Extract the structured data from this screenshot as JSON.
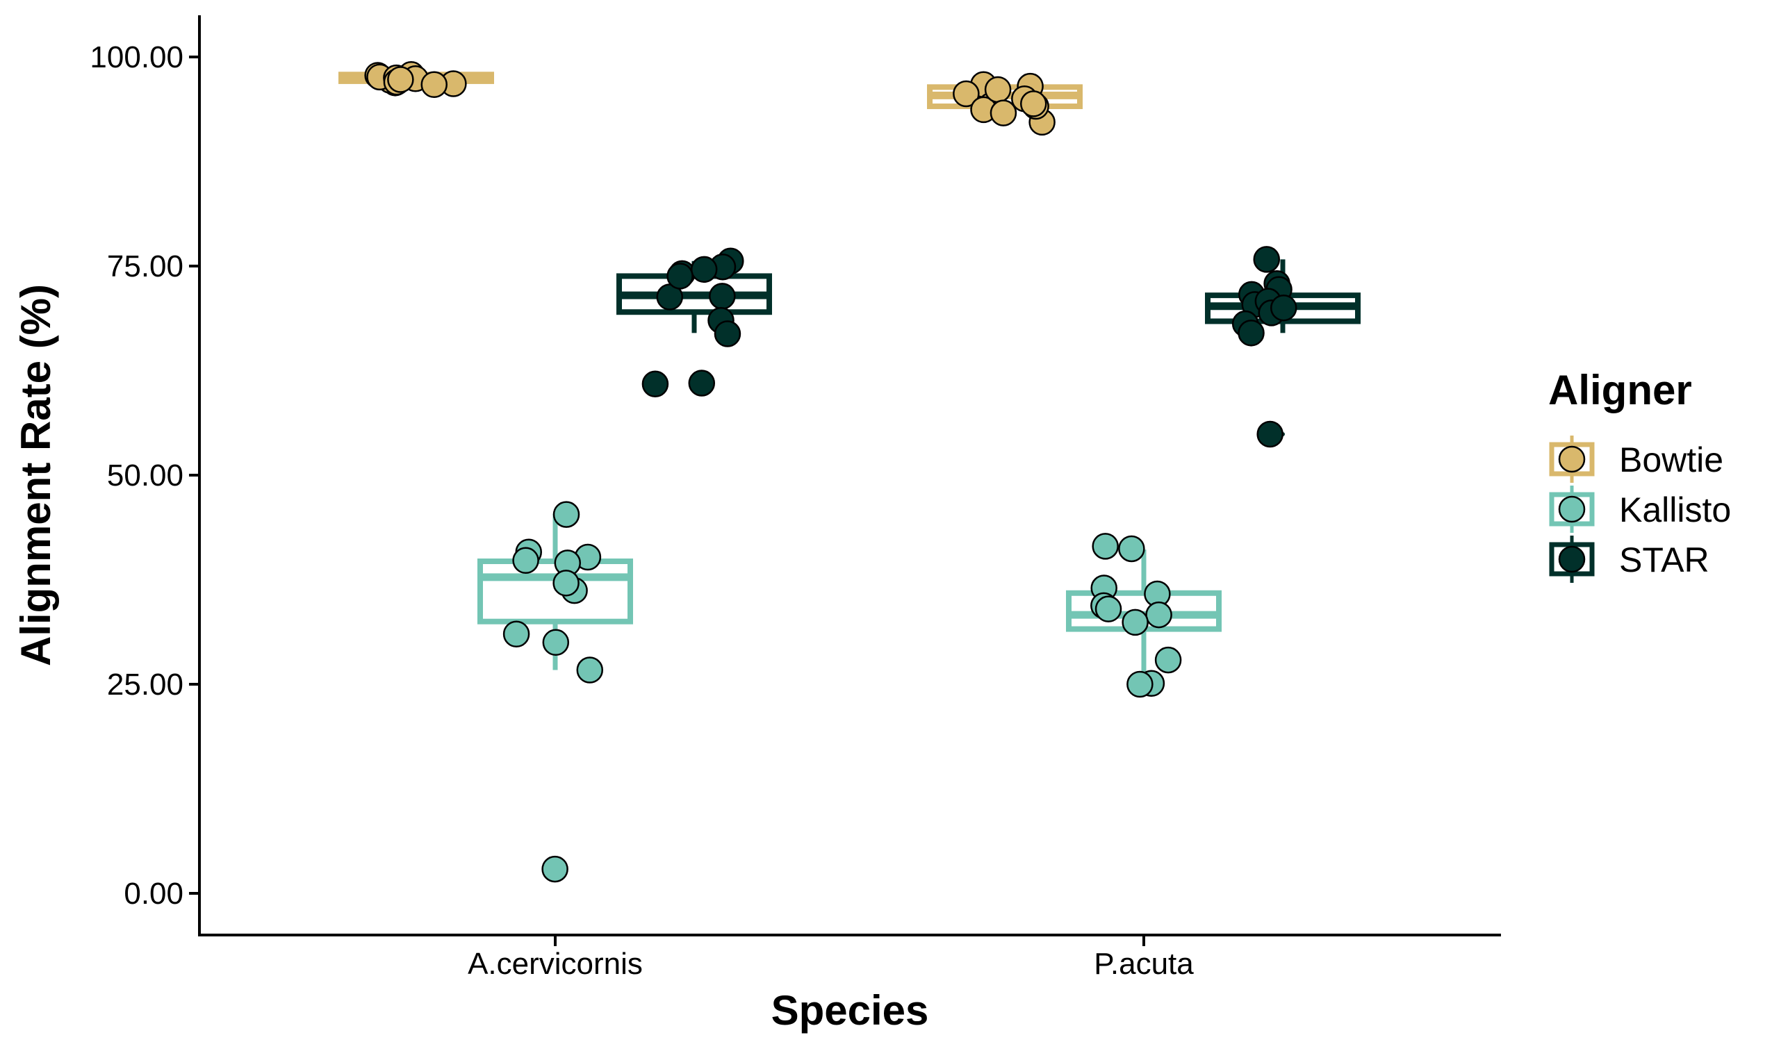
{
  "chart_data": {
    "type": "boxplot",
    "title": "",
    "xlabel": "Species",
    "ylabel": "Alignment Rate (%)",
    "ylim": [
      -5,
      105
    ],
    "yticks": [
      "0.00",
      "25.00",
      "50.00",
      "75.00",
      "100.00"
    ],
    "categories": [
      "A.cervicornis",
      "P.acuta"
    ],
    "legend": {
      "title": "Aligner",
      "position": "right"
    },
    "grid": false,
    "series": [
      {
        "name": "Bowtie",
        "color": "#D9B86C",
        "groups": [
          {
            "q1": 97.1,
            "median": 97.5,
            "q3": 97.9,
            "whisker_low": 96.6,
            "whisker_high": 98.0,
            "outliers": [],
            "points": [
              97.9,
              97.4,
              96.9,
              97.8,
              97.2,
              97.6,
              96.8,
              97.5,
              97.0,
              97.3,
              96.7
            ]
          },
          {
            "q1": 94.1,
            "median": 95.4,
            "q3": 96.4,
            "whisker_low": 92.2,
            "whisker_high": 96.9,
            "outliers": [],
            "points": [
              96.7,
              94.2,
              95.6,
              92.2,
              96.5,
              93.7,
              94.1,
              96.1,
              93.3,
              95.0,
              94.4
            ]
          }
        ]
      },
      {
        "name": "Kallisto",
        "color": "#73C5B4",
        "groups": [
          {
            "q1": 32.5,
            "median": 37.8,
            "q3": 39.7,
            "whisker_low": 26.7,
            "whisker_high": 45.4,
            "outliers": [
              2.8
            ],
            "points": [
              45.3,
              40.2,
              39.5,
              40.8,
              36.2,
              37.1,
              39.8,
              30.0,
              31.0,
              26.7,
              2.9
            ]
          },
          {
            "q1": 31.6,
            "median": 33.3,
            "q3": 35.9,
            "whisker_low": 25.1,
            "whisker_high": 41.1,
            "outliers": [],
            "points": [
              41.5,
              41.2,
              36.5,
              35.8,
              34.4,
              33.3,
              32.4,
              27.9,
              25.1,
              25.0,
              34.0
            ]
          }
        ]
      },
      {
        "name": "STAR",
        "color": "#01302A",
        "groups": [
          {
            "q1": 69.5,
            "median": 71.5,
            "q3": 73.8,
            "whisker_low": 67.0,
            "whisker_high": 75.6,
            "outliers": [
              61.0
            ],
            "points": [
              75.6,
              74.9,
              74.1,
              74.6,
              71.4,
              71.3,
              68.5,
              66.9,
              61.0,
              60.9,
              73.8
            ]
          },
          {
            "q1": 68.4,
            "median": 70.2,
            "q3": 71.5,
            "whisker_low": 67.0,
            "whisker_high": 75.8,
            "outliers": [
              54.9
            ],
            "points": [
              75.8,
              72.9,
              72.2,
              71.6,
              70.4,
              70.8,
              69.4,
              68.1,
              67.0,
              54.9,
              70.0
            ]
          }
        ]
      }
    ]
  }
}
